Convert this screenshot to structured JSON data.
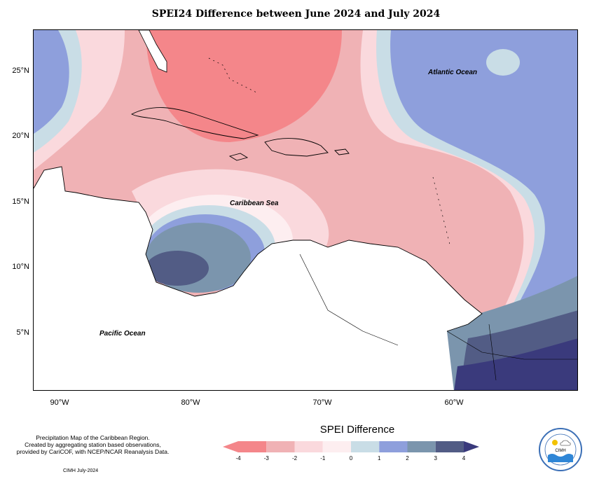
{
  "title": "SPEI24 Difference between June 2024 and July 2024",
  "map": {
    "lat_ticks": [
      "25°N",
      "20°N",
      "15°N",
      "10°N",
      "5°N"
    ],
    "lon_ticks": [
      "90°W",
      "80°W",
      "70°W",
      "60°W"
    ],
    "labels": {
      "atlantic": "Atlantic Ocean",
      "caribbean": "Caribbean Sea",
      "pacific": "Pacific Ocean"
    }
  },
  "legend": {
    "title": "SPEI Difference",
    "ticks": [
      "-4",
      "-3",
      "-2",
      "-1",
      "0",
      "1",
      "2",
      "3",
      "4"
    ],
    "colors": [
      "#f4868a",
      "#f0b2b5",
      "#fad9dd",
      "#fdeef0",
      "#c9dde6",
      "#8e9fdc",
      "#7b95ad",
      "#525c85",
      "#3a3a7c"
    ]
  },
  "credits": {
    "line1": "Precipitation Map of the Caribbean Region.",
    "line2": "Created by aggregating station based observations,",
    "line3": "provided by CariCOF, with NCEP/NCAR Reanalysis Data."
  },
  "issue": "CIMH July-2024",
  "logo": {
    "name": "CIMH"
  }
}
